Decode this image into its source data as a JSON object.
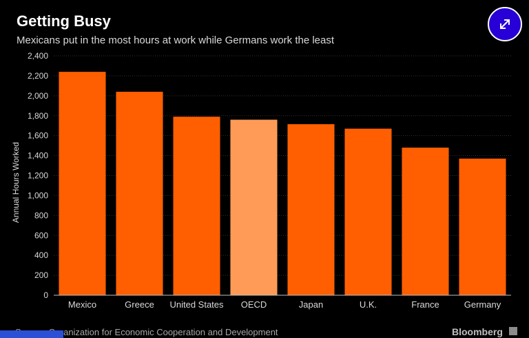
{
  "header": {
    "title": "Getting Busy",
    "subtitle": "Mexicans put in the most hours at work while Germans work the least"
  },
  "footer": {
    "source": "Source: Organization for Economic Cooperation and Development",
    "brand": "Bloomberg"
  },
  "colors": {
    "bar": "#ff5f00",
    "highlight_bar": "#ff9b57",
    "grid": "#333333",
    "axis_text": "#d9d9d9",
    "expand_button": "#2800d7"
  },
  "icons": {
    "expand": "expand-arrows-icon"
  },
  "chart_data": {
    "type": "bar",
    "title": "Getting Busy",
    "subtitle": "Mexicans put in the most hours at work while Germans work the least",
    "xlabel": "",
    "ylabel": "Annual Hours Worked",
    "categories": [
      "Mexico",
      "Greece",
      "United States",
      "OECD",
      "Japan",
      "U.K.",
      "France",
      "Germany"
    ],
    "values": [
      2240,
      2040,
      1790,
      1760,
      1715,
      1670,
      1480,
      1370
    ],
    "highlight": [
      "OECD"
    ],
    "ylim": [
      0,
      2400
    ],
    "yticks": [
      0,
      200,
      400,
      600,
      800,
      1000,
      1200,
      1400,
      1600,
      1800,
      2000,
      2200,
      2400
    ],
    "ytick_labels": [
      "0",
      "200",
      "400",
      "600",
      "800",
      "1,000",
      "1,200",
      "1,400",
      "1,600",
      "1,800",
      "2,000",
      "2,200",
      "2,400"
    ],
    "grid": true,
    "legend": "none"
  }
}
